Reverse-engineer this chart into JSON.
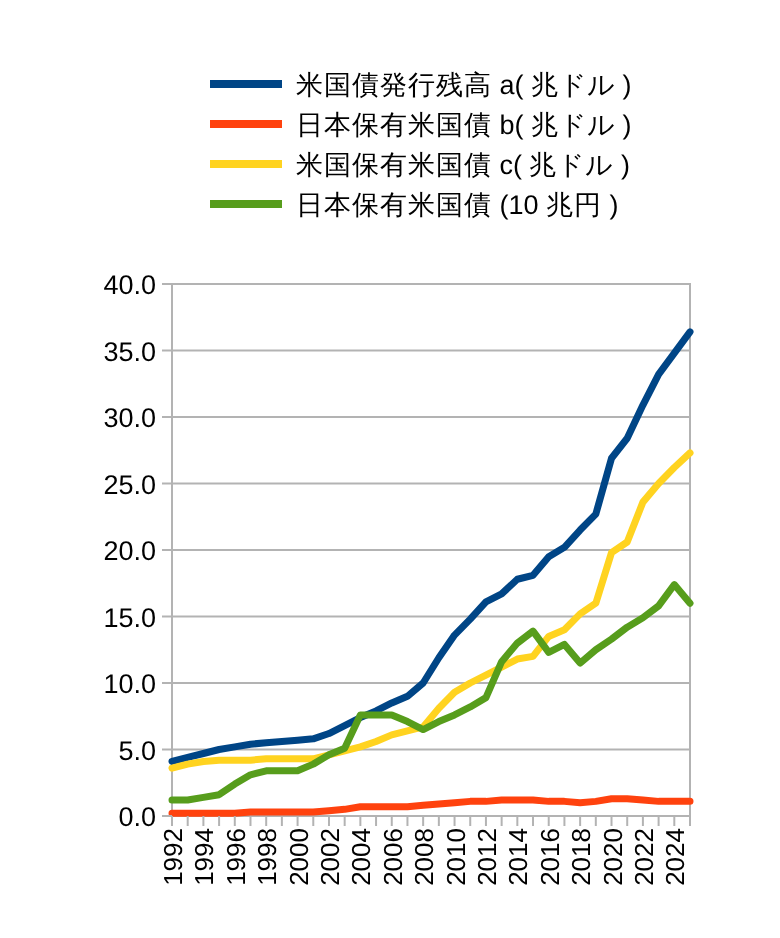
{
  "chart_data": {
    "type": "line",
    "legend": "top",
    "grid": "y",
    "x": [
      1992,
      1993,
      1994,
      1995,
      1996,
      1997,
      1998,
      1999,
      2000,
      2001,
      2002,
      2003,
      2004,
      2005,
      2006,
      2007,
      2008,
      2009,
      2010,
      2011,
      2012,
      2013,
      2014,
      2015,
      2016,
      2017,
      2018,
      2019,
      2020,
      2021,
      2022,
      2023,
      2024,
      2025
    ],
    "xlim": [
      1992,
      2025
    ],
    "xticks": [
      1992,
      {
        "value": 1993,
        "label": null
      },
      1994,
      {
        "value": 1995,
        "label": null
      },
      1996,
      {
        "value": 1997,
        "label": null
      },
      1998,
      {
        "value": 1999,
        "label": null
      },
      2000,
      {
        "value": 2001,
        "label": null
      },
      2002,
      {
        "value": 2003,
        "label": null
      },
      2004,
      {
        "value": 2005,
        "label": null
      },
      2006,
      {
        "value": 2007,
        "label": null
      },
      2008,
      {
        "value": 2009,
        "label": null
      },
      2010,
      {
        "value": 2011,
        "label": null
      },
      2012,
      {
        "value": 2013,
        "label": null
      },
      2014,
      {
        "value": 2015,
        "label": null
      },
      2016,
      {
        "value": 2017,
        "label": null
      },
      2018,
      {
        "value": 2019,
        "label": null
      },
      2020,
      {
        "value": 2021,
        "label": null
      },
      2022,
      {
        "value": 2023,
        "label": null
      },
      2024,
      {
        "value": 2025,
        "label": null
      }
    ],
    "ylim": [
      0,
      40
    ],
    "yticks": [
      {
        "value": 0,
        "label": "0.0"
      },
      {
        "value": 5,
        "label": "5.0"
      },
      {
        "value": 10,
        "label": "10.0"
      },
      {
        "value": 15,
        "label": "15.0"
      },
      {
        "value": 20,
        "label": "20.0"
      },
      {
        "value": 25,
        "label": "25.0"
      },
      {
        "value": 30,
        "label": "30.0"
      },
      {
        "value": 35,
        "label": "35.0"
      },
      {
        "value": 40,
        "label": "40.0"
      }
    ],
    "series": [
      {
        "name": "米国債発行残高 a( 兆ドル )",
        "color": "#004586",
        "values": [
          4.1,
          4.4,
          4.7,
          5.0,
          5.2,
          5.4,
          5.5,
          5.6,
          5.7,
          5.8,
          6.2,
          6.8,
          7.4,
          7.9,
          8.5,
          9.0,
          10.0,
          11.9,
          13.6,
          14.8,
          16.1,
          16.7,
          17.8,
          18.1,
          19.5,
          20.2,
          21.5,
          22.7,
          26.9,
          28.4,
          30.9,
          33.2,
          34.8,
          36.4
        ]
      },
      {
        "name": "日本保有米国債 b( 兆ドル )",
        "color": "#ff420e",
        "values": [
          0.2,
          0.2,
          0.2,
          0.2,
          0.2,
          0.3,
          0.3,
          0.3,
          0.3,
          0.3,
          0.4,
          0.5,
          0.7,
          0.7,
          0.7,
          0.7,
          0.8,
          0.9,
          1.0,
          1.1,
          1.1,
          1.2,
          1.2,
          1.2,
          1.1,
          1.1,
          1.0,
          1.1,
          1.3,
          1.3,
          1.2,
          1.1,
          1.1,
          1.1
        ]
      },
      {
        "name": "米国保有米国債 c( 兆ドル )",
        "color": "#ffd320",
        "values": [
          3.6,
          3.9,
          4.1,
          4.2,
          4.2,
          4.2,
          4.3,
          4.3,
          4.3,
          4.3,
          4.6,
          4.9,
          5.2,
          5.6,
          6.1,
          6.4,
          6.7,
          8.1,
          9.3,
          10.0,
          10.6,
          11.2,
          11.8,
          12.0,
          13.5,
          14.0,
          15.2,
          16.0,
          19.8,
          20.6,
          23.6,
          25.0,
          26.2,
          27.3
        ]
      },
      {
        "name": "日本保有米国債 (10 兆円 )",
        "color": "#579d1c",
        "values": [
          1.2,
          1.2,
          1.4,
          1.6,
          2.4,
          3.1,
          3.4,
          3.4,
          3.4,
          3.9,
          4.6,
          5.1,
          7.6,
          7.6,
          7.6,
          7.1,
          6.5,
          7.1,
          7.6,
          8.2,
          8.9,
          11.6,
          13.0,
          13.9,
          12.3,
          12.9,
          11.5,
          12.5,
          13.3,
          14.2,
          14.9,
          15.8,
          17.4,
          16.0
        ]
      }
    ]
  }
}
